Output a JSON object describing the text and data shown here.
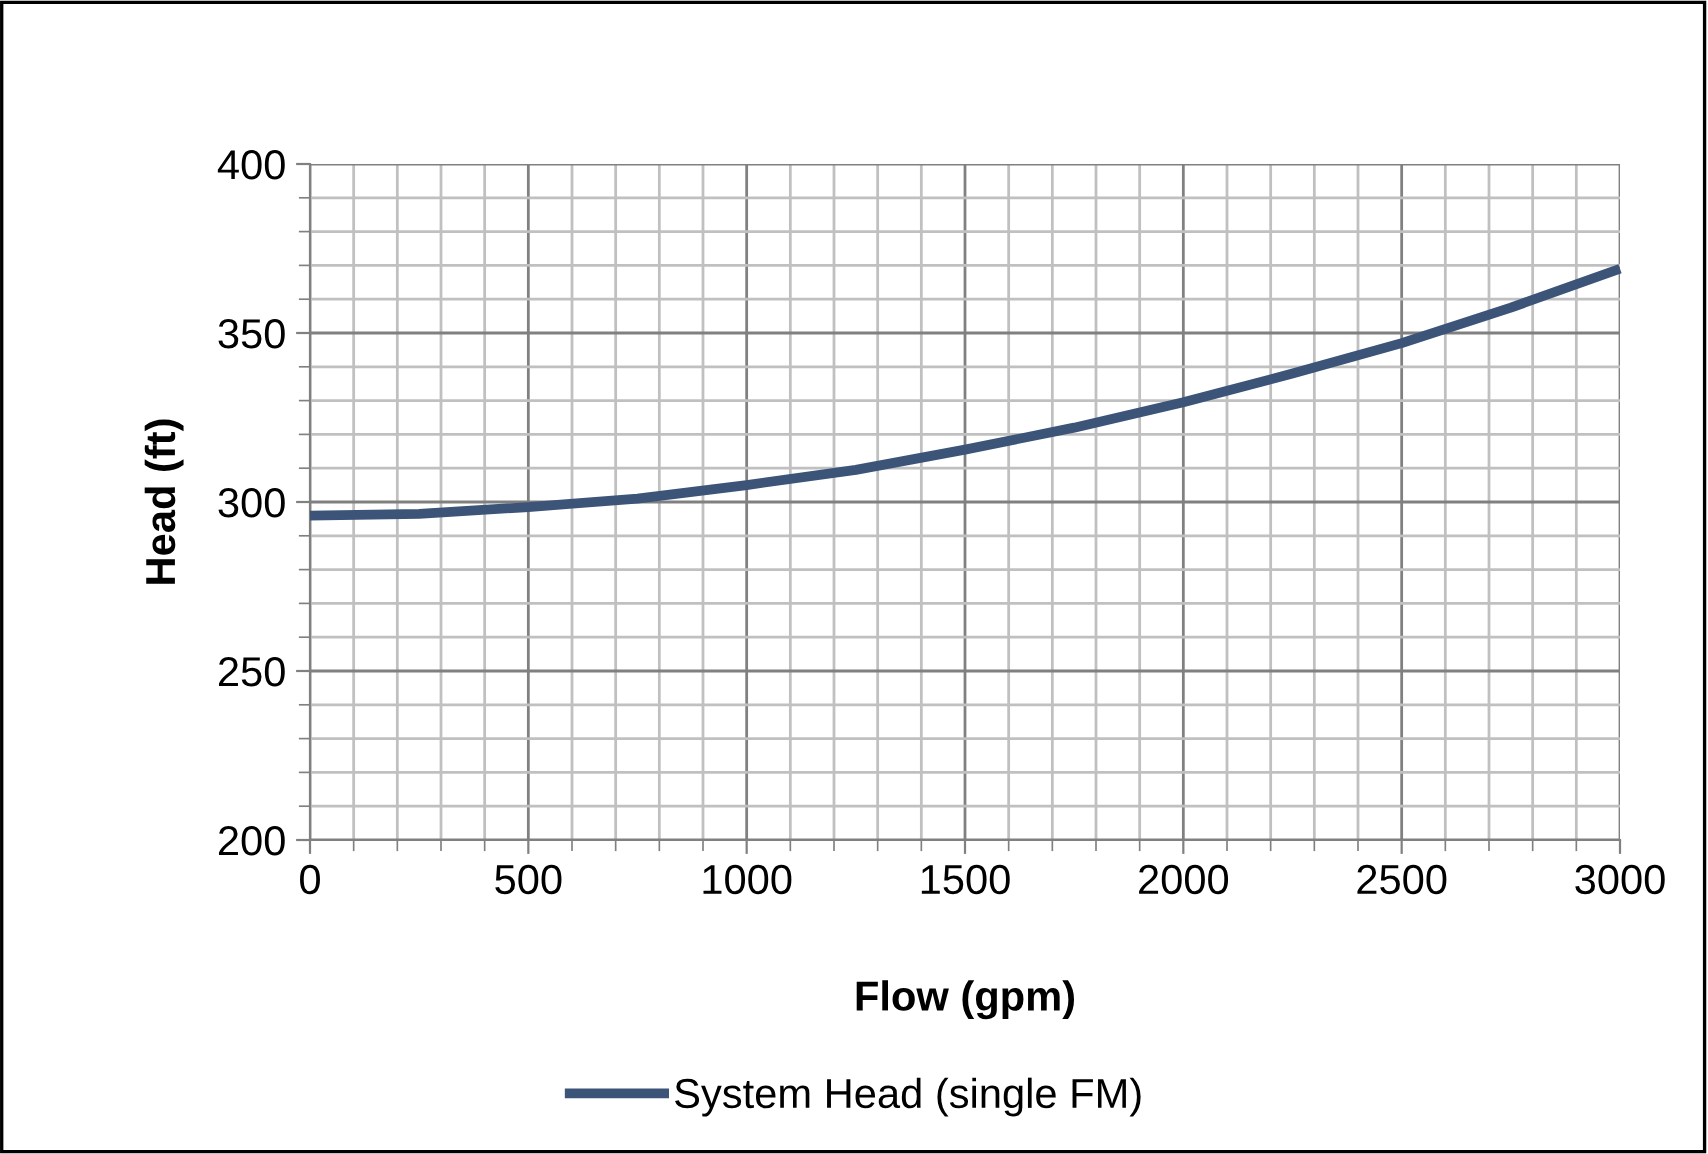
{
  "chart_data": {
    "type": "line",
    "xlabel": "Flow (gpm)",
    "ylabel": "Head (ft)",
    "x": [
      0,
      250,
      500,
      750,
      1000,
      1250,
      1500,
      1750,
      2000,
      2250,
      2500,
      2750,
      3000
    ],
    "series": [
      {
        "name": "System Head (single FM)",
        "color": "#3b5478",
        "values": [
          296,
          296.5,
          298.5,
          301,
          305,
          309.5,
          315.5,
          322,
          329.5,
          338,
          347,
          357.5,
          369
        ]
      }
    ],
    "xlim": [
      0,
      3000
    ],
    "ylim": [
      200,
      400
    ],
    "xticks": [
      0,
      500,
      1000,
      1500,
      2000,
      2500,
      3000
    ],
    "yticks": [
      200,
      250,
      300,
      350,
      400
    ],
    "grid": true,
    "legend": "bottom",
    "marker": "none",
    "line_style": "solid"
  }
}
